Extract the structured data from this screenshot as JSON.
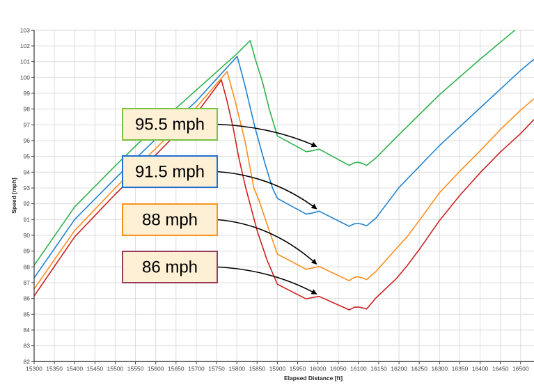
{
  "chart_data": {
    "type": "line",
    "title": "",
    "xlabel": "Elapsed Distance [ft]",
    "ylabel": "Speed [mph]",
    "xlim": [
      15300,
      16533
    ],
    "ylim": [
      82,
      103
    ],
    "xticks": [
      15300,
      15350,
      15400,
      15450,
      15500,
      15550,
      15600,
      15650,
      15700,
      15750,
      15800,
      15850,
      15900,
      15950,
      16000,
      16050,
      16100,
      16150,
      16200,
      16250,
      16300,
      16350,
      16400,
      16450,
      16500
    ],
    "yticks": [
      82,
      83,
      84,
      85,
      86,
      87,
      88,
      89,
      90,
      91,
      92,
      93,
      94,
      95,
      96,
      97,
      98,
      99,
      100,
      101,
      102,
      103
    ],
    "grid": true,
    "legend": "none",
    "series": [
      {
        "color": "#2eb34b",
        "points": [
          [
            15300,
            88.1
          ],
          [
            15400,
            91.8
          ],
          [
            15500,
            94.4
          ],
          [
            15600,
            96.9
          ],
          [
            15700,
            99.2
          ],
          [
            15800,
            101.5
          ],
          [
            15833,
            102.34
          ],
          [
            15845,
            101.2
          ],
          [
            15863,
            99.76
          ],
          [
            15880,
            98.0
          ],
          [
            15900,
            96.3
          ],
          [
            15971,
            95.3
          ],
          [
            15985,
            95.35
          ],
          [
            16003,
            95.46
          ],
          [
            16077,
            94.43
          ],
          [
            16090,
            94.6
          ],
          [
            16100,
            94.62
          ],
          [
            16110,
            94.55
          ],
          [
            16120,
            94.43
          ],
          [
            16143,
            94.9
          ],
          [
            16194,
            96.23
          ],
          [
            16300,
            98.91
          ],
          [
            16400,
            101.16
          ],
          [
            16486,
            103.0
          ]
        ]
      },
      {
        "color": "#1f83d0",
        "points": [
          [
            15300,
            87.3
          ],
          [
            15400,
            91.0
          ],
          [
            15500,
            93.6
          ],
          [
            15600,
            96.1
          ],
          [
            15700,
            98.5
          ],
          [
            15801,
            101.34
          ],
          [
            15820,
            99.5
          ],
          [
            15845,
            96.8
          ],
          [
            15870,
            94.5
          ],
          [
            15888,
            93.0
          ],
          [
            15900,
            92.34
          ],
          [
            15971,
            91.35
          ],
          [
            15985,
            91.4
          ],
          [
            16003,
            91.53
          ],
          [
            16077,
            90.57
          ],
          [
            16090,
            90.73
          ],
          [
            16100,
            90.75
          ],
          [
            16110,
            90.7
          ],
          [
            16120,
            90.6
          ],
          [
            16143,
            91.09
          ],
          [
            16200,
            93.03
          ],
          [
            16300,
            95.69
          ],
          [
            16400,
            98.07
          ],
          [
            16500,
            100.45
          ],
          [
            16533,
            101.16
          ]
        ]
      },
      {
        "color": "#ff8c1a",
        "points": [
          [
            15300,
            86.6
          ],
          [
            15400,
            90.3
          ],
          [
            15500,
            93.0
          ],
          [
            15600,
            95.5
          ],
          [
            15700,
            98.1
          ],
          [
            15776,
            100.38
          ],
          [
            15795,
            98.6
          ],
          [
            15820,
            96.0
          ],
          [
            15842,
            93.0
          ],
          [
            15854,
            92.26
          ],
          [
            15880,
            90.3
          ],
          [
            15900,
            88.81
          ],
          [
            15971,
            87.85
          ],
          [
            15985,
            87.92
          ],
          [
            16003,
            88.03
          ],
          [
            16077,
            87.12
          ],
          [
            16090,
            87.34
          ],
          [
            16100,
            87.37
          ],
          [
            16110,
            87.3
          ],
          [
            16120,
            87.19
          ],
          [
            16143,
            87.71
          ],
          [
            16194,
            89.18
          ],
          [
            16220,
            89.9
          ],
          [
            16250,
            90.94
          ],
          [
            16300,
            92.7
          ],
          [
            16350,
            94.06
          ],
          [
            16400,
            95.35
          ],
          [
            16450,
            96.7
          ],
          [
            16500,
            97.93
          ],
          [
            16533,
            98.66
          ]
        ]
      },
      {
        "color": "#cc1f1f",
        "points": [
          [
            15300,
            86.15
          ],
          [
            15400,
            89.9
          ],
          [
            15500,
            92.6
          ],
          [
            15600,
            95.1
          ],
          [
            15700,
            97.7
          ],
          [
            15762,
            99.84
          ],
          [
            15775,
            98.6
          ],
          [
            15791,
            96.82
          ],
          [
            15805,
            94.9
          ],
          [
            15822,
            93.0
          ],
          [
            15851,
            90.21
          ],
          [
            15875,
            88.4
          ],
          [
            15900,
            86.9
          ],
          [
            15971,
            85.97
          ],
          [
            15985,
            86.05
          ],
          [
            16003,
            86.13
          ],
          [
            16077,
            85.28
          ],
          [
            16090,
            85.44
          ],
          [
            16100,
            85.46
          ],
          [
            16110,
            85.4
          ],
          [
            16120,
            85.33
          ],
          [
            16143,
            86.03
          ],
          [
            16194,
            87.27
          ],
          [
            16220,
            88.07
          ],
          [
            16250,
            89.1
          ],
          [
            16300,
            90.94
          ],
          [
            16350,
            92.53
          ],
          [
            16400,
            93.96
          ],
          [
            16450,
            95.28
          ],
          [
            16500,
            96.45
          ],
          [
            16533,
            97.34
          ]
        ]
      }
    ],
    "annotations": [
      {
        "text": "95.5 mph",
        "border": "#7dc142",
        "target": [
          16000,
          95.5
        ]
      },
      {
        "text": "91.5 mph",
        "border": "#1f6fd1",
        "target": [
          16000,
          91.55
        ]
      },
      {
        "text": "88 mph",
        "border": "#f7941d",
        "target": [
          16000,
          88.05
        ]
      },
      {
        "text": "86 mph",
        "border": "#9b3b5a",
        "target": [
          16000,
          86.15
        ]
      }
    ],
    "annotation_fill": "#fdf0d5"
  }
}
